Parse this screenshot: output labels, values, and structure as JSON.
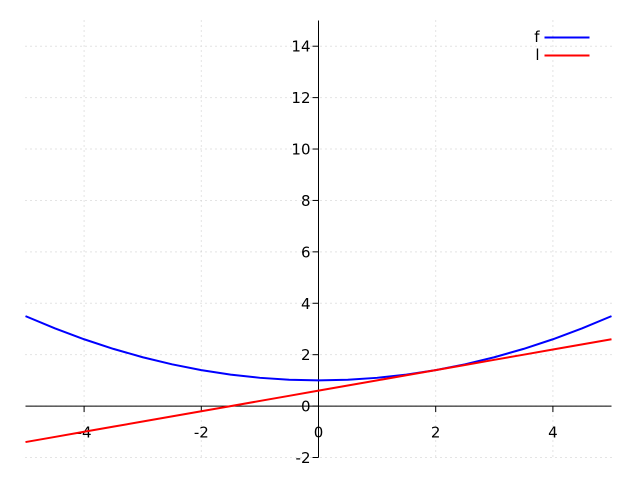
{
  "chart_data": {
    "type": "line",
    "x": [
      -5,
      -4.5,
      -4,
      -3.5,
      -3,
      -2.5,
      -2,
      -1.5,
      -1,
      -0.5,
      0,
      0.5,
      1,
      1.5,
      2,
      2.5,
      3,
      3.5,
      4,
      4.5,
      5
    ],
    "series": [
      {
        "name": "f",
        "color": "#0000ff",
        "values": [
          3.5,
          3.025,
          2.6,
          2.225,
          1.9,
          1.625,
          1.4,
          1.225,
          1.1,
          1.025,
          1,
          1.025,
          1.1,
          1.225,
          1.4,
          1.625,
          1.9,
          2.225,
          2.6,
          3.025,
          3.5
        ]
      },
      {
        "name": "l",
        "color": "#ff0000",
        "values": [
          -1.4,
          -1.2,
          -1,
          -0.8,
          -0.6,
          -0.4,
          -0.2,
          0,
          0.2,
          0.4,
          0.6,
          0.8,
          1,
          1.2,
          1.4,
          1.6,
          1.8,
          2,
          2.2,
          2.4,
          2.6
        ]
      }
    ],
    "xlim": [
      -5,
      5
    ],
    "ylim": [
      -2,
      15
    ],
    "xticks": [
      -4,
      -2,
      0,
      2,
      4
    ],
    "yticks": [
      -2,
      0,
      2,
      4,
      6,
      8,
      10,
      12,
      14
    ],
    "grid": true,
    "legend": "top-right"
  }
}
